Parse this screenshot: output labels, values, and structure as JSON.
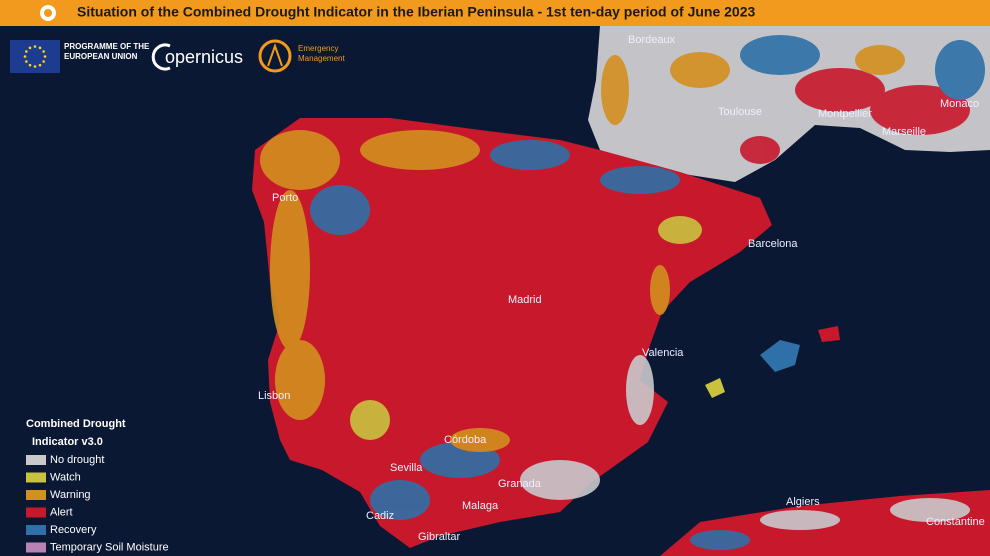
{
  "header": {
    "title": "Situation of the Combined Drought Indicator in the Iberian Peninsula  - 1st ten-day period of June 2023"
  },
  "logos": {
    "eu": "PROGRAMME OF THE EUROPEAN UNION",
    "copernicus": "opernicus",
    "ems": "Emergency Management"
  },
  "legend": {
    "title_line1": "Combined Drought",
    "title_line2": "Indicator v3.0",
    "items": [
      {
        "label": "No drought",
        "color": "#c9c9cc"
      },
      {
        "label": "Watch",
        "color": "#c9c23e"
      },
      {
        "label": "Warning",
        "color": "#d38f1f"
      },
      {
        "label": "Alert",
        "color": "#c8192c"
      },
      {
        "label": "Recovery",
        "color": "#2f70a8"
      },
      {
        "label": "Temporary Soil Moisture",
        "color": "#b882b3"
      }
    ]
  },
  "cities": [
    "Bordeaux",
    "Toulouse",
    "Montpellier",
    "Marseille",
    "Monaco",
    "Barcelona",
    "Madrid",
    "Valencia",
    "Lisbon",
    "Porto",
    "Córdoba",
    "Sevilla",
    "Granada",
    "Malaga",
    "Cadiz",
    "Gibraltar",
    "Algiers",
    "Constantine"
  ]
}
